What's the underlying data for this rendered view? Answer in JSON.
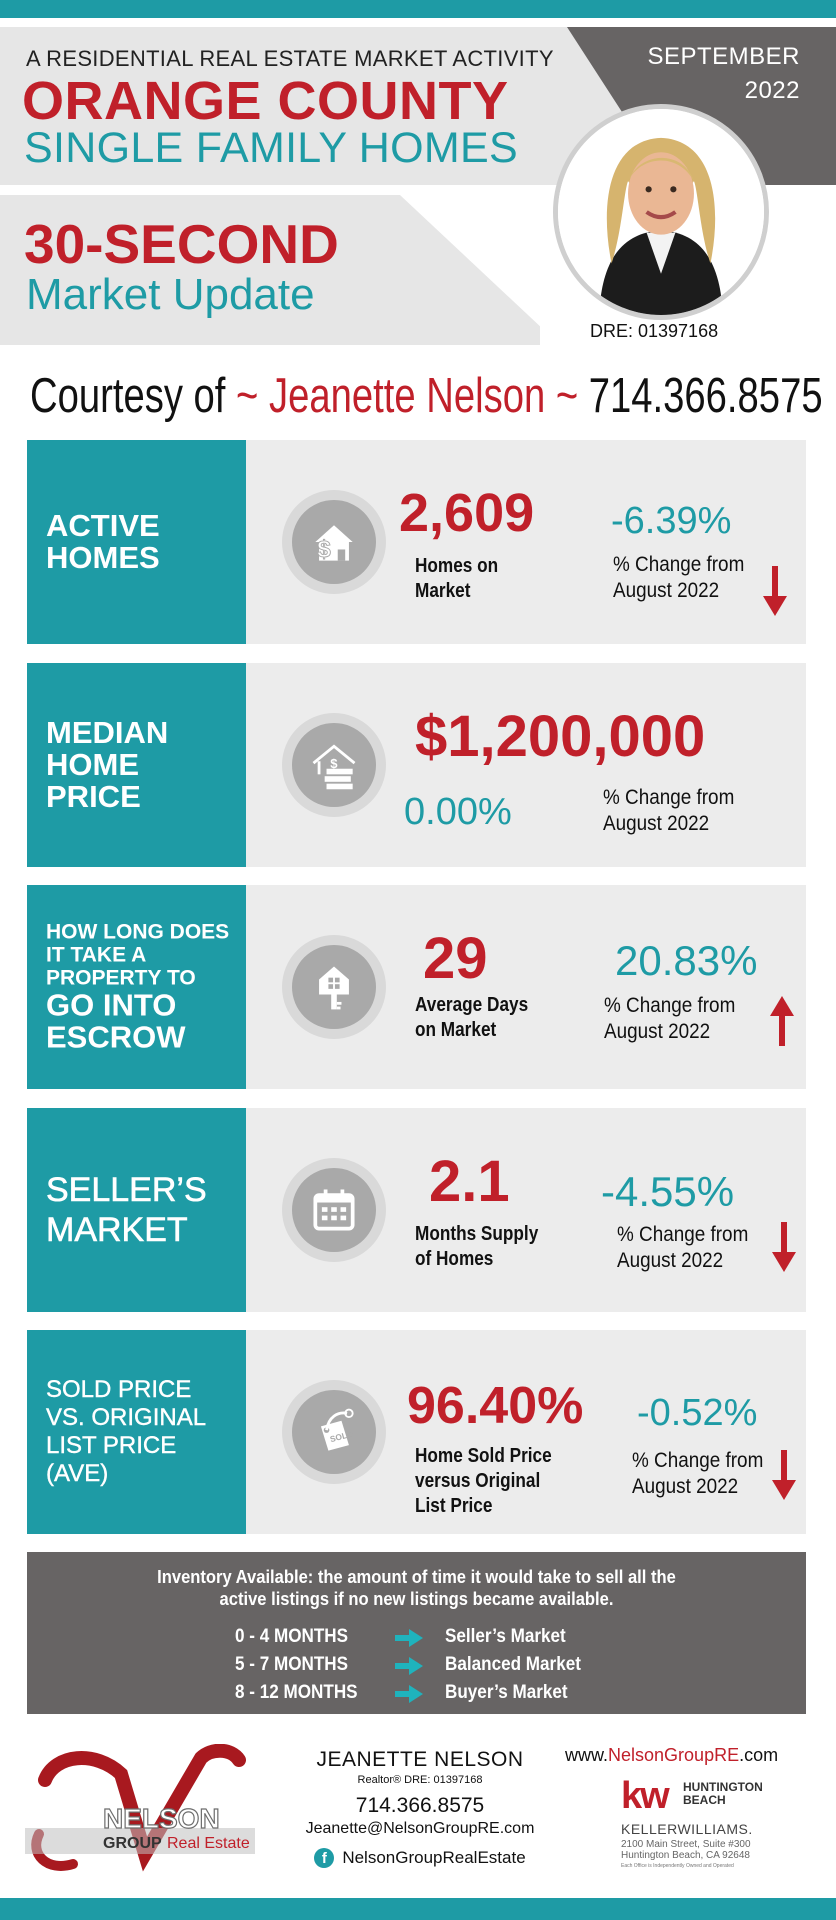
{
  "header": {
    "subtitle": "A RESIDENTIAL REAL ESTATE MARKET ACTIVITY",
    "title": "ORANGE COUNTY",
    "title_sub": "SINGLE FAMILY HOMES",
    "update_bold": "30-SECOND",
    "update_sub": "Market Update",
    "month": "SEPTEMBER",
    "year": "2022",
    "dre": "DRE: 01397168"
  },
  "courtesy": {
    "prefix": "Courtesy of ",
    "name": "~ Jeanette Nelson ~",
    "phone": " 714.366.8575"
  },
  "cards": [
    {
      "label": "ACTIVE HOMES",
      "icon": "house-dollar-icon",
      "value": "2,609",
      "desc_1": "Homes on",
      "desc_2": "Market",
      "change": "-6.39%",
      "change_label_1": "% Change from",
      "change_label_2": "August 2022",
      "direction": "down"
    },
    {
      "label": "MEDIAN HOME PRICE",
      "icon": "house-cash-icon",
      "value": "$1,200,000",
      "change": "0.00%",
      "change_label_1": "% Change from",
      "change_label_2": "August 2022",
      "direction": "none"
    },
    {
      "label_small": "HOW LONG DOES IT TAKE A PROPERTY TO",
      "label_big": "GO INTO ESCROW",
      "icon": "house-key-icon",
      "value": "29",
      "desc_1": "Average Days",
      "desc_2": "on Market",
      "change": "20.83%",
      "change_label_1": "% Change from",
      "change_label_2": "August 2022",
      "direction": "up"
    },
    {
      "label": "SELLER’S MARKET",
      "icon": "calendar-icon",
      "value": "2.1",
      "desc_1": "Months Supply",
      "desc_2": "of Homes",
      "change": "-4.55%",
      "change_label_1": "% Change from",
      "change_label_2": "August 2022",
      "direction": "down"
    },
    {
      "label": "SOLD PRICE VS. ORIGINAL LIST PRICE (AVE)",
      "icon": "sold-tag-icon",
      "value": "96.40%",
      "desc_1": "Home Sold Price",
      "desc_2": "versus Original",
      "desc_3": "List Price",
      "change": "-0.52%",
      "change_label_1": "% Change from",
      "change_label_2": "August 2022",
      "direction": "down"
    }
  ],
  "inventory": {
    "heading_1": "Inventory Available:  the amount of time it would take to sell all the",
    "heading_2": "active listings if no new listings became available.",
    "rows": [
      {
        "months": "0 - 4 MONTHS",
        "market": "Seller’s Market"
      },
      {
        "months": "5 - 7 MONTHS",
        "market": "Balanced Market"
      },
      {
        "months": "8 - 12 MONTHS",
        "market": "Buyer’s Market"
      }
    ]
  },
  "footer": {
    "logo_name": "NELSON",
    "logo_group": "GROUP",
    "logo_re": "Real Estate",
    "agent_name": "JEANETTE NELSON",
    "agent_role": "Realtor®  DRE: 01397168",
    "phone": "714.366.8575",
    "email": "Jeanette@NelsonGroupRE.com",
    "facebook": "NelsonGroupRealEstate",
    "url_prefix": "www.",
    "url_brand": "NelsonGroupRE",
    "url_suffix": ".com",
    "kw_mark": "kw",
    "kw_office_1": "HUNTINGTON",
    "kw_office_2": "BEACH",
    "kw_name": "KELLERWILLIAMS.",
    "kw_addr_1": "2100 Main Street, Suite #300",
    "kw_addr_2": "Huntington Beach, CA 92648",
    "kw_fine": "Each Office is Independently Owned and Operated"
  },
  "colors": {
    "teal": "#1e9ba5",
    "red": "#c0202a",
    "dark_gray": "#676464",
    "light_gray": "#ececec"
  }
}
